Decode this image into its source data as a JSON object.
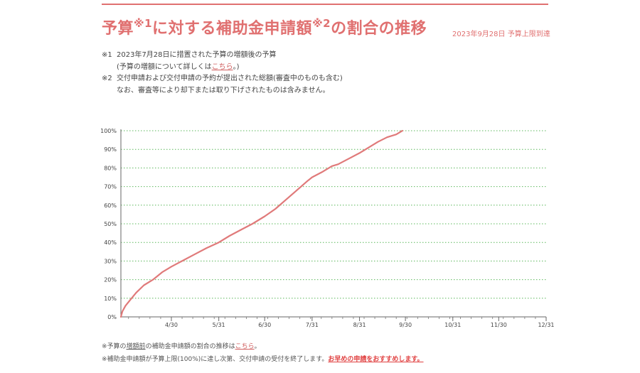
{
  "header": {
    "title_part1": "予算",
    "title_sup1": "※1",
    "title_part2": "に対する補助金申請額",
    "title_sup2": "※2",
    "title_part3": "の割合の推移",
    "status": "2023年9月28日 予算上限到達"
  },
  "notes": {
    "note1_mark": "※1",
    "note1_text": "2023年7月28日に措置された予算の増額後の予算",
    "note1_sub_prefix": "(予算の増額について詳しくは",
    "note1_sub_link": "こちら",
    "note1_sub_suffix": "。)",
    "note2_mark": "※2",
    "note2_text": "交付申請および交付申請の予約が提出された総額(審査中のものも含む)",
    "note2_sub": "なお、審査等により却下または取り下げされたものは含みません。"
  },
  "footer": {
    "line1_prefix": "※予算の",
    "line1_underlined": "増額前",
    "line1_middle": "の補助金申請額の割合の推移は",
    "line1_link": "こちら",
    "line1_suffix": "。",
    "line2_text": "※補助金申請額が予算上限(100%)に達し次第、交付申請の受付を終了します。",
    "line2_emphasis": "お早めの申請をおすすめします。"
  },
  "chart_data": {
    "type": "line",
    "title": "",
    "xlabel": "",
    "ylabel": "",
    "ylim": [
      0,
      100
    ],
    "y_ticks": [
      0,
      10,
      20,
      30,
      40,
      50,
      60,
      70,
      80,
      90,
      100
    ],
    "y_tick_labels": [
      "0%",
      "10%",
      "20%",
      "30%",
      "40%",
      "50%",
      "60%",
      "70%",
      "80%",
      "90%",
      "100%"
    ],
    "xlim": [
      "2023-03-28",
      "2023-12-31"
    ],
    "x_ticks": [
      "2023-04-30",
      "2023-05-31",
      "2023-06-30",
      "2023-07-31",
      "2023-08-31",
      "2023-09-30",
      "2023-10-31",
      "2023-11-30",
      "2023-12-31"
    ],
    "x_tick_labels": [
      "4/30",
      "5/31",
      "6/30",
      "7/31",
      "8/31",
      "9/30",
      "10/31",
      "11/30",
      "12/31"
    ],
    "grid": "horizontal-dotted",
    "line_color": "#e07a7a",
    "grid_color": "#5cb85c",
    "series": [
      {
        "name": "",
        "x": [
          "2023-03-28",
          "2023-03-29",
          "2023-03-31",
          "2023-04-03",
          "2023-04-07",
          "2023-04-12",
          "2023-04-18",
          "2023-04-24",
          "2023-04-30",
          "2023-05-07",
          "2023-05-15",
          "2023-05-23",
          "2023-05-31",
          "2023-06-07",
          "2023-06-15",
          "2023-06-22",
          "2023-06-30",
          "2023-07-07",
          "2023-07-14",
          "2023-07-21",
          "2023-07-28",
          "2023-07-31",
          "2023-08-07",
          "2023-08-13",
          "2023-08-17",
          "2023-08-24",
          "2023-08-31",
          "2023-09-06",
          "2023-09-12",
          "2023-09-18",
          "2023-09-24",
          "2023-09-28"
        ],
        "y": [
          0,
          3,
          6,
          9,
          13,
          17,
          20,
          24,
          27,
          30,
          33.5,
          37,
          40,
          43.5,
          47,
          50,
          54,
          58,
          63,
          68,
          73,
          75,
          78,
          81,
          82,
          85,
          88,
          91,
          94,
          96.5,
          98,
          100
        ]
      }
    ]
  }
}
